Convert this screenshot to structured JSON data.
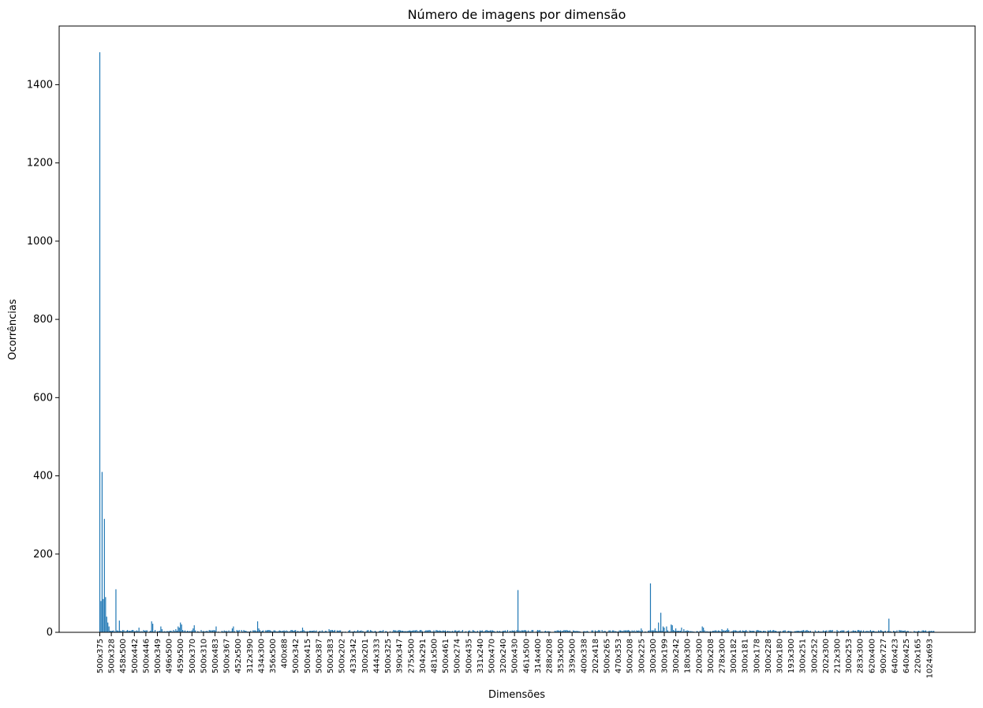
{
  "chart_data": {
    "type": "bar",
    "title": "Número de imagens por dimensão",
    "xlabel": "Dimensões",
    "ylabel": "Ocorrências",
    "ylim": [
      0,
      1550
    ],
    "yticks": [
      0,
      200,
      400,
      600,
      800,
      1000,
      1200,
      1400
    ],
    "bar_color": "#1f77b4",
    "grid": false,
    "num_categories": 725,
    "tick_every": 10,
    "tick_labels": [
      "500x375",
      "500x328",
      "458x500",
      "500x442",
      "500x446",
      "500x349",
      "496x500",
      "459x500",
      "500x370",
      "500x310",
      "500x483",
      "500x367",
      "452x500",
      "312x390",
      "434x300",
      "356x500",
      "400x88",
      "500x342",
      "500x415",
      "500x387",
      "500x383",
      "500x202",
      "433x342",
      "300x201",
      "444x333",
      "500x325",
      "390x347",
      "275x500",
      "304x291",
      "481x500",
      "500x461",
      "500x274",
      "500x435",
      "331x240",
      "500x470",
      "320x240",
      "500x430",
      "461x500",
      "314x400",
      "288x208",
      "353x500",
      "339x500",
      "400x338",
      "202x418",
      "500x265",
      "470x353",
      "500x208",
      "300x225",
      "300x300",
      "300x199",
      "300x242",
      "180x300",
      "200x300",
      "300x208",
      "278x300",
      "300x182",
      "300x181",
      "300x178",
      "300x228",
      "300x180",
      "193x300",
      "300x251",
      "300x252",
      "202x300",
      "212x300",
      "300x253",
      "283x300",
      "620x400",
      "900x727",
      "640x423",
      "640x425",
      "220x165",
      "1024x693"
    ],
    "notable_values": [
      {
        "index": 0,
        "value": 1483
      },
      {
        "index": 1,
        "value": 80
      },
      {
        "index": 2,
        "value": 410
      },
      {
        "index": 3,
        "value": 85
      },
      {
        "index": 4,
        "value": 290
      },
      {
        "index": 5,
        "value": 90
      },
      {
        "index": 6,
        "value": 40
      },
      {
        "index": 7,
        "value": 25
      },
      {
        "index": 8,
        "value": 15
      },
      {
        "index": 14,
        "value": 110
      },
      {
        "index": 17,
        "value": 30
      },
      {
        "index": 34,
        "value": 12
      },
      {
        "index": 45,
        "value": 28
      },
      {
        "index": 46,
        "value": 22
      },
      {
        "index": 53,
        "value": 15
      },
      {
        "index": 54,
        "value": 8
      },
      {
        "index": 66,
        "value": 8
      },
      {
        "index": 68,
        "value": 15
      },
      {
        "index": 69,
        "value": 12
      },
      {
        "index": 70,
        "value": 25
      },
      {
        "index": 71,
        "value": 20
      },
      {
        "index": 81,
        "value": 10
      },
      {
        "index": 82,
        "value": 18
      },
      {
        "index": 101,
        "value": 15
      },
      {
        "index": 115,
        "value": 10
      },
      {
        "index": 116,
        "value": 15
      },
      {
        "index": 137,
        "value": 28
      },
      {
        "index": 138,
        "value": 10
      },
      {
        "index": 176,
        "value": 12
      },
      {
        "index": 199,
        "value": 8
      },
      {
        "index": 363,
        "value": 108
      },
      {
        "index": 470,
        "value": 10
      },
      {
        "index": 478,
        "value": 125
      },
      {
        "index": 482,
        "value": 10
      },
      {
        "index": 485,
        "value": 25
      },
      {
        "index": 487,
        "value": 50
      },
      {
        "index": 489,
        "value": 15
      },
      {
        "index": 490,
        "value": 12
      },
      {
        "index": 492,
        "value": 15
      },
      {
        "index": 496,
        "value": 20
      },
      {
        "index": 497,
        "value": 18
      },
      {
        "index": 500,
        "value": 10
      },
      {
        "index": 505,
        "value": 12
      },
      {
        "index": 507,
        "value": 8
      },
      {
        "index": 523,
        "value": 15
      },
      {
        "index": 524,
        "value": 12
      },
      {
        "index": 540,
        "value": 8
      },
      {
        "index": 545,
        "value": 10
      },
      {
        "index": 685,
        "value": 35
      }
    ],
    "baseline_value_range": [
      1,
      6
    ]
  }
}
